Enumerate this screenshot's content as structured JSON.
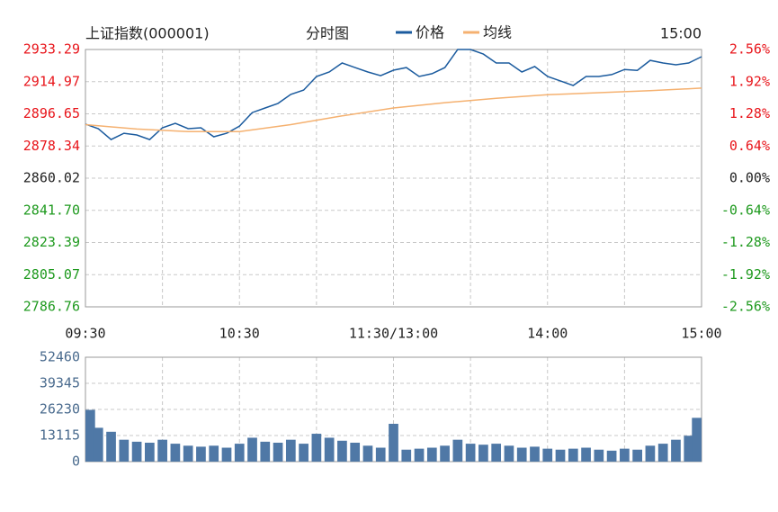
{
  "chart_data": [
    {
      "type": "line",
      "title": "上证指数(000001)",
      "subtitle": "分时图",
      "time_label": "15:00",
      "xlim": [
        0,
        240
      ],
      "xticks": [
        {
          "value": 0,
          "label": "09:30"
        },
        {
          "value": 60,
          "label": "10:30"
        },
        {
          "value": 120,
          "label": "11:30/13:00"
        },
        {
          "value": 180,
          "label": "14:00"
        },
        {
          "value": 240,
          "label": "15:00"
        }
      ],
      "xminor": [
        30,
        90,
        150,
        210
      ],
      "ylim": [
        2786.76,
        2933.29
      ],
      "yticks": [
        {
          "value": 2786.76,
          "label": "2786.76"
        },
        {
          "value": 2805.07,
          "label": "2805.07"
        },
        {
          "value": 2823.39,
          "label": "2823.39"
        },
        {
          "value": 2841.7,
          "label": "2841.70"
        },
        {
          "value": 2860.02,
          "label": "2860.02"
        },
        {
          "value": 2878.34,
          "label": "2878.34"
        },
        {
          "value": 2896.65,
          "label": "2896.65"
        },
        {
          "value": 2914.97,
          "label": "2914.97"
        },
        {
          "value": 2933.29,
          "label": "2933.29"
        }
      ],
      "y2lim": [
        -2.56,
        2.56
      ],
      "y2ticks": [
        {
          "value": -2.56,
          "label": "-2.56%"
        },
        {
          "value": -1.92,
          "label": "-1.92%"
        },
        {
          "value": -1.28,
          "label": "-1.28%"
        },
        {
          "value": -0.64,
          "label": "-0.64%"
        },
        {
          "value": 0,
          "label": "0.00%"
        },
        {
          "value": 0.64,
          "label": "0.64%"
        },
        {
          "value": 1.28,
          "label": "1.28%"
        },
        {
          "value": 1.92,
          "label": "1.92%"
        },
        {
          "value": 2.56,
          "label": "2.56%"
        }
      ],
      "colors": {
        "up": "#e8151b",
        "down": "#1f9a1f",
        "flat": "#222222"
      },
      "grid": true,
      "series": [
        {
          "name": "价格",
          "color": "#1b5b9e",
          "x": [
            0,
            5,
            10,
            15,
            20,
            25,
            30,
            35,
            40,
            45,
            50,
            55,
            60,
            65,
            70,
            75,
            80,
            85,
            90,
            95,
            100,
            105,
            110,
            115,
            120,
            125,
            130,
            135,
            140,
            145,
            150,
            155,
            160,
            165,
            170,
            175,
            180,
            185,
            190,
            195,
            200,
            205,
            210,
            215,
            220,
            225,
            230,
            235,
            240
          ],
          "values": [
            2890.8,
            2888.2,
            2882.0,
            2885.6,
            2884.6,
            2882.0,
            2888.7,
            2891.3,
            2888.2,
            2888.7,
            2883.6,
            2885.6,
            2889.7,
            2897.4,
            2900.0,
            2902.6,
            2907.7,
            2910.2,
            2917.9,
            2920.5,
            2925.6,
            2923.0,
            2920.5,
            2918.4,
            2921.5,
            2923.0,
            2917.9,
            2919.5,
            2923.0,
            2933.3,
            2933.3,
            2930.7,
            2925.6,
            2925.6,
            2920.5,
            2923.6,
            2917.9,
            2915.4,
            2912.8,
            2917.9,
            2917.9,
            2919.0,
            2921.9,
            2921.4,
            2927.1,
            2925.6,
            2924.6,
            2925.6,
            2929.2
          ]
        },
        {
          "name": "均线",
          "color": "#f5b170",
          "x": [
            0,
            20,
            40,
            60,
            80,
            100,
            120,
            140,
            160,
            180,
            200,
            220,
            240
          ],
          "values": [
            2890.5,
            2888.0,
            2886.5,
            2886.5,
            2890.5,
            2895.5,
            2900.0,
            2903.0,
            2905.5,
            2907.5,
            2908.7,
            2909.8,
            2911.3
          ]
        }
      ]
    },
    {
      "type": "bar",
      "color": "#4f78a6",
      "xlim": [
        0,
        240
      ],
      "xminor": [
        30,
        60,
        90,
        120,
        150,
        180,
        210
      ],
      "ylim": [
        0,
        52460
      ],
      "yticks": [
        0,
        13115,
        26230,
        39345,
        52460
      ],
      "grid": true,
      "x": [
        0,
        5,
        10,
        15,
        20,
        25,
        30,
        35,
        40,
        45,
        50,
        55,
        60,
        65,
        70,
        75,
        80,
        85,
        90,
        95,
        100,
        105,
        110,
        115,
        120,
        125,
        130,
        135,
        140,
        145,
        150,
        155,
        160,
        165,
        170,
        175,
        180,
        185,
        190,
        195,
        200,
        205,
        210,
        215,
        220,
        225,
        230,
        235,
        240
      ],
      "values": [
        26000,
        17000,
        15000,
        11000,
        10000,
        9500,
        11000,
        9000,
        8000,
        7500,
        8000,
        7000,
        9000,
        12000,
        10000,
        9500,
        11000,
        9000,
        14000,
        12000,
        10500,
        9500,
        8000,
        7000,
        19000,
        6000,
        6500,
        7000,
        8000,
        11000,
        9000,
        8500,
        9000,
        8000,
        7000,
        7500,
        6500,
        6000,
        6500,
        7000,
        6000,
        5500,
        6500,
        6000,
        8000,
        9000,
        11000,
        13000,
        22000
      ]
    }
  ]
}
